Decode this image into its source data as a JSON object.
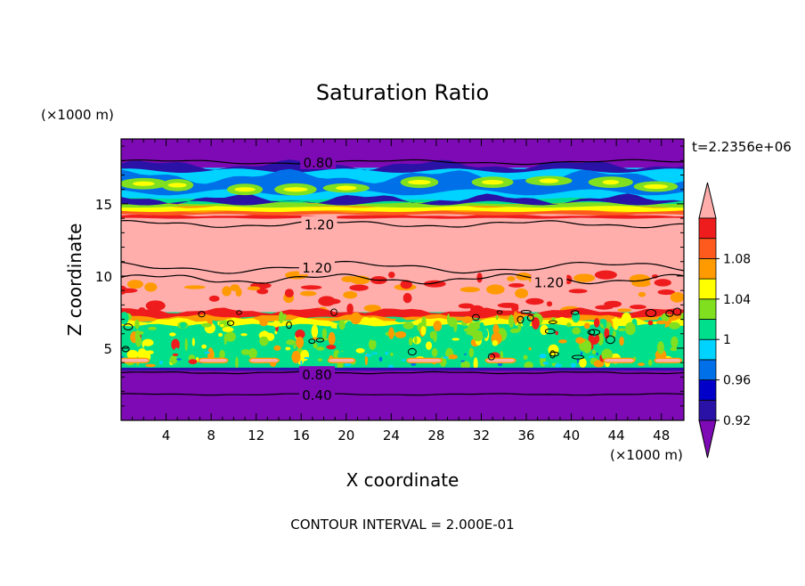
{
  "chart_data": {
    "type": "heatmap",
    "title": "Saturation Ratio",
    "xlabel": "X coordinate",
    "ylabel": "Z coordinate",
    "x_unit": "(×1000 m)",
    "y_unit": "(×1000 m)",
    "time_label": "t=2.2356e+06",
    "footer": "CONTOUR INTERVAL = 2.000E-01",
    "xlim": [
      0,
      50
    ],
    "ylim": [
      0,
      19.5
    ],
    "x_ticks": [
      4,
      8,
      12,
      16,
      20,
      24,
      28,
      32,
      36,
      40,
      44,
      48
    ],
    "y_ticks": [
      5,
      10,
      15
    ],
    "colorbar": {
      "tick_labels": [
        "0.92",
        "0.96",
        "1",
        "1.04",
        "1.08"
      ],
      "tick_values": [
        0.92,
        0.96,
        1.0,
        1.04,
        1.08
      ],
      "levels": [
        0.9,
        0.92,
        0.94,
        0.96,
        0.98,
        1.0,
        1.02,
        1.04,
        1.06,
        1.08,
        1.1
      ],
      "colors": [
        "#7d0ab4",
        "#2a12a6",
        "#0000c8",
        "#0070e8",
        "#00d3ff",
        "#00e08c",
        "#80e020",
        "#ffff00",
        "#ff9a00",
        "#ff5a1e",
        "#ee1c1c",
        "#ffaeac"
      ]
    },
    "contour_labels": [
      {
        "text": "0.80",
        "x": 17.5,
        "z": 17.9
      },
      {
        "text": "1.20",
        "x": 17.6,
        "z": 13.6
      },
      {
        "text": "1.20",
        "x": 17.4,
        "z": 10.6
      },
      {
        "text": "1.20",
        "x": 38.0,
        "z": 9.6
      },
      {
        "text": "0.80",
        "x": 17.4,
        "z": 3.2
      },
      {
        "text": "0.40",
        "x": 17.4,
        "z": 1.8
      }
    ],
    "bands": [
      {
        "z": [
          0,
          3.6
        ],
        "color": "#7d0ab4"
      },
      {
        "z": [
          3.6,
          7.5
        ],
        "color": "#00e08c"
      },
      {
        "z": [
          7.5,
          14.3
        ],
        "color": "#ffaeac"
      },
      {
        "z": [
          14.3,
          15.2
        ],
        "color": "#ff9a00"
      },
      {
        "z": [
          15.2,
          17.5
        ],
        "color": "#00d3ff"
      },
      {
        "z": [
          17.5,
          19.5
        ],
        "color": "#7d0ab4"
      }
    ]
  }
}
